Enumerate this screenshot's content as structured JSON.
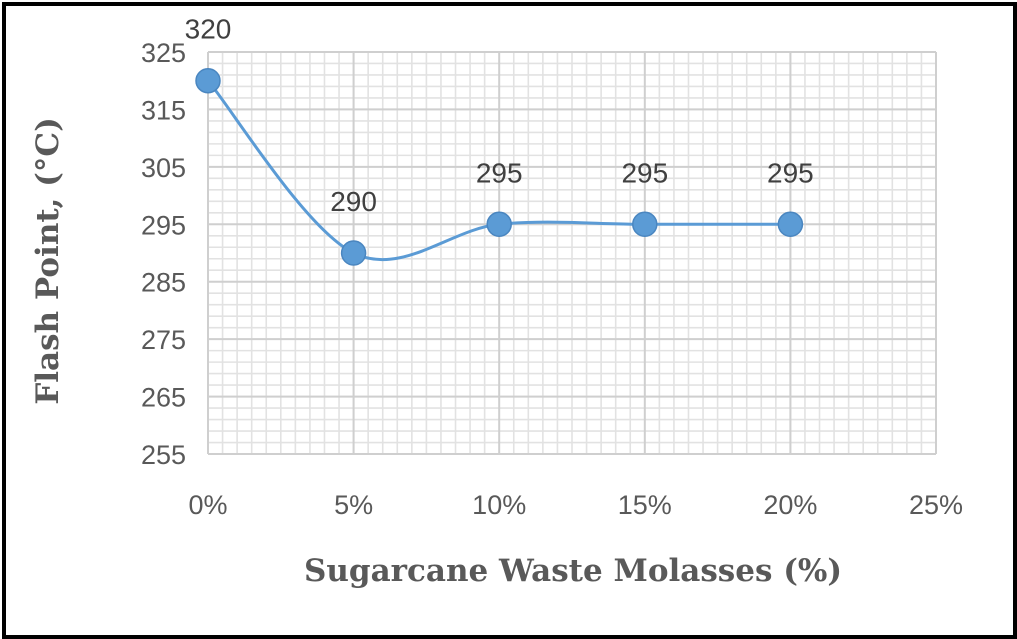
{
  "chart_data": {
    "type": "line",
    "title": "",
    "xlabel": "Sugarcane Waste Molasses (%)",
    "ylabel": "Flash Point, (°C)",
    "x_ticks": [
      "0%",
      "5%",
      "10%",
      "15%",
      "20%",
      "25%"
    ],
    "x_values": [
      0,
      5,
      10,
      15,
      20
    ],
    "xlim": [
      0,
      25
    ],
    "ylim": [
      255,
      325
    ],
    "y_ticks": [
      255,
      265,
      275,
      285,
      295,
      305,
      315,
      325
    ],
    "series": [
      {
        "values": [
          320,
          290,
          295,
          295,
          295
        ],
        "labels": [
          "320",
          "290",
          "295",
          "295",
          "295"
        ],
        "color": "#5b9bd5",
        "smooth": true,
        "marker": "circle"
      }
    ],
    "grid": true,
    "minor_grid": true,
    "legend": "none"
  }
}
